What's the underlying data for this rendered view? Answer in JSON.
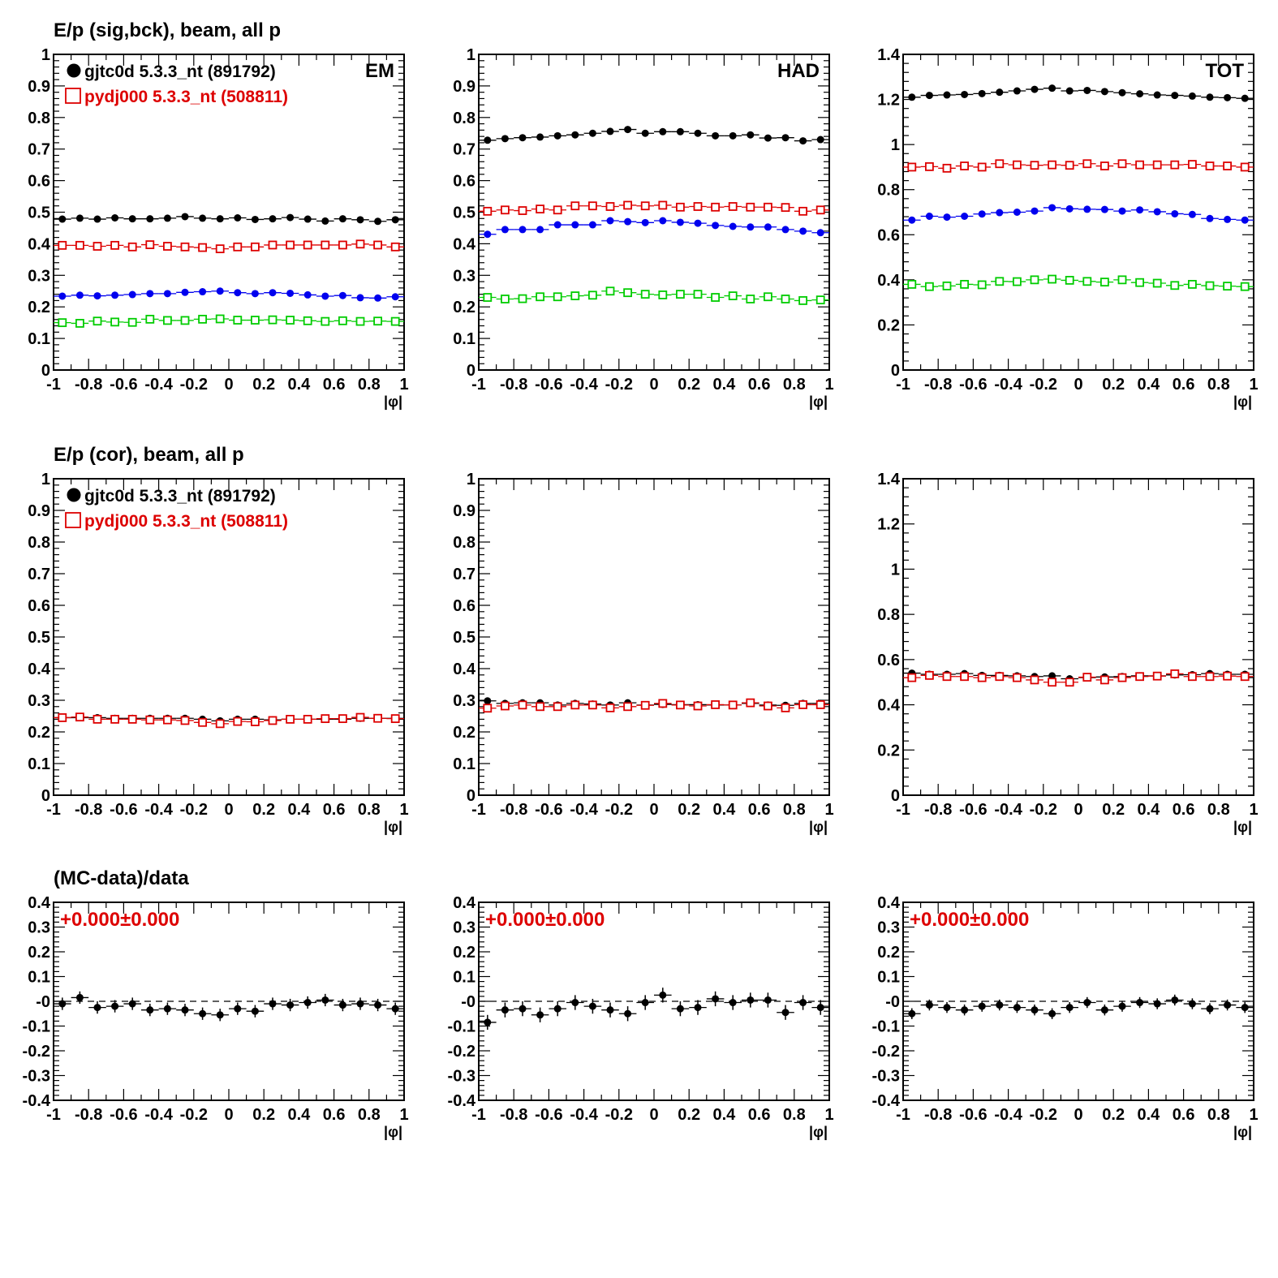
{
  "colors": {
    "black": "#000000",
    "red": "#dd0000",
    "blue": "#0000ee",
    "green": "#00cc00"
  },
  "legend": [
    {
      "label": "gjtc0d 5.3.3_nt (891792)",
      "marker": "filled-circle",
      "color": "#000000"
    },
    {
      "label": "pydj000 5.3.3_nt (508811)",
      "marker": "open-square",
      "color": "#dd0000"
    }
  ],
  "row_titles": [
    "E/p (sig,bck), beam, all p",
    "E/p (cor), beam, all p",
    "(MC-data)/data"
  ],
  "chart_data": [
    {
      "type": "scatter",
      "row": 0,
      "col": 0,
      "tag": "EM",
      "xlabel": "|φ|",
      "xlim": [
        -1,
        1
      ],
      "ylim": [
        0,
        1
      ],
      "xticks": [
        -1,
        -0.8,
        -0.6,
        -0.4,
        -0.2,
        0,
        0.2,
        0.4,
        0.6,
        0.8,
        1
      ],
      "yticks": [
        0,
        0.1,
        0.2,
        0.3,
        0.4,
        0.5,
        0.6,
        0.7,
        0.8,
        0.9,
        1
      ],
      "show_legend": true,
      "series": [
        {
          "marker": "filled-circle",
          "color": "#000000",
          "values": [
            0.478,
            0.481,
            0.478,
            0.482,
            0.479,
            0.479,
            0.481,
            0.486,
            0.481,
            0.479,
            0.482,
            0.477,
            0.479,
            0.483,
            0.478,
            0.472,
            0.479,
            0.476,
            0.471,
            0.476
          ]
        },
        {
          "marker": "open-square",
          "color": "#dd0000",
          "values": [
            0.395,
            0.395,
            0.392,
            0.395,
            0.39,
            0.397,
            0.392,
            0.39,
            0.388,
            0.384,
            0.39,
            0.39,
            0.396,
            0.396,
            0.396,
            0.396,
            0.396,
            0.399,
            0.396,
            0.39
          ]
        },
        {
          "marker": "filled-circle",
          "color": "#0000ee",
          "values": [
            0.234,
            0.237,
            0.235,
            0.237,
            0.239,
            0.242,
            0.242,
            0.246,
            0.248,
            0.25,
            0.245,
            0.242,
            0.245,
            0.243,
            0.238,
            0.234,
            0.236,
            0.229,
            0.228,
            0.232
          ]
        },
        {
          "marker": "open-square",
          "color": "#00cc00",
          "values": [
            0.15,
            0.148,
            0.155,
            0.152,
            0.151,
            0.161,
            0.157,
            0.157,
            0.161,
            0.162,
            0.158,
            0.158,
            0.159,
            0.158,
            0.156,
            0.154,
            0.156,
            0.154,
            0.155,
            0.154
          ]
        }
      ]
    },
    {
      "type": "scatter",
      "row": 0,
      "col": 1,
      "tag": "HAD",
      "xlabel": "|φ|",
      "xlim": [
        -1,
        1
      ],
      "ylim": [
        0,
        1
      ],
      "xticks": [
        -1,
        -0.8,
        -0.6,
        -0.4,
        -0.2,
        0,
        0.2,
        0.4,
        0.6,
        0.8,
        1
      ],
      "yticks": [
        0,
        0.1,
        0.2,
        0.3,
        0.4,
        0.5,
        0.6,
        0.7,
        0.8,
        0.9,
        1
      ],
      "series": [
        {
          "marker": "filled-circle",
          "color": "#000000",
          "values": [
            0.728,
            0.733,
            0.736,
            0.738,
            0.742,
            0.745,
            0.75,
            0.756,
            0.762,
            0.75,
            0.755,
            0.755,
            0.75,
            0.742,
            0.742,
            0.745,
            0.735,
            0.736,
            0.726,
            0.73
          ]
        },
        {
          "marker": "open-square",
          "color": "#dd0000",
          "values": [
            0.503,
            0.507,
            0.505,
            0.51,
            0.507,
            0.52,
            0.52,
            0.518,
            0.522,
            0.52,
            0.522,
            0.516,
            0.518,
            0.516,
            0.518,
            0.516,
            0.516,
            0.515,
            0.503,
            0.507
          ]
        },
        {
          "marker": "filled-circle",
          "color": "#0000ee",
          "values": [
            0.43,
            0.445,
            0.445,
            0.445,
            0.46,
            0.46,
            0.46,
            0.473,
            0.47,
            0.467,
            0.473,
            0.468,
            0.465,
            0.458,
            0.455,
            0.453,
            0.453,
            0.445,
            0.44,
            0.435
          ]
        },
        {
          "marker": "open-square",
          "color": "#00cc00",
          "values": [
            0.23,
            0.225,
            0.226,
            0.232,
            0.232,
            0.235,
            0.237,
            0.25,
            0.245,
            0.24,
            0.238,
            0.24,
            0.24,
            0.23,
            0.235,
            0.225,
            0.232,
            0.225,
            0.22,
            0.222
          ]
        }
      ]
    },
    {
      "type": "scatter",
      "row": 0,
      "col": 2,
      "tag": "TOT",
      "xlabel": "|φ|",
      "xlim": [
        -1,
        1
      ],
      "ylim": [
        0,
        1.4
      ],
      "xticks": [
        -1,
        -0.8,
        -0.6,
        -0.4,
        -0.2,
        0,
        0.2,
        0.4,
        0.6,
        0.8,
        1
      ],
      "yticks": [
        0,
        0.2,
        0.4,
        0.6,
        0.8,
        1,
        1.2,
        1.4
      ],
      "series": [
        {
          "marker": "filled-circle",
          "color": "#000000",
          "values": [
            1.21,
            1.218,
            1.22,
            1.222,
            1.226,
            1.232,
            1.238,
            1.245,
            1.25,
            1.238,
            1.24,
            1.235,
            1.23,
            1.225,
            1.22,
            1.218,
            1.215,
            1.21,
            1.208,
            1.205
          ]
        },
        {
          "marker": "open-square",
          "color": "#dd0000",
          "values": [
            0.9,
            0.902,
            0.895,
            0.905,
            0.9,
            0.915,
            0.91,
            0.908,
            0.91,
            0.908,
            0.915,
            0.905,
            0.915,
            0.91,
            0.91,
            0.91,
            0.912,
            0.905,
            0.905,
            0.9
          ]
        },
        {
          "marker": "filled-circle",
          "color": "#0000ee",
          "values": [
            0.665,
            0.682,
            0.678,
            0.682,
            0.692,
            0.698,
            0.7,
            0.705,
            0.72,
            0.715,
            0.713,
            0.712,
            0.705,
            0.71,
            0.702,
            0.693,
            0.69,
            0.672,
            0.668,
            0.665
          ]
        },
        {
          "marker": "open-square",
          "color": "#00cc00",
          "values": [
            0.38,
            0.37,
            0.373,
            0.38,
            0.378,
            0.393,
            0.392,
            0.4,
            0.403,
            0.398,
            0.393,
            0.39,
            0.4,
            0.388,
            0.385,
            0.375,
            0.38,
            0.374,
            0.372,
            0.37
          ]
        }
      ]
    },
    {
      "type": "scatter",
      "row": 1,
      "col": 0,
      "xlabel": "|φ|",
      "xlim": [
        -1,
        1
      ],
      "ylim": [
        0,
        1
      ],
      "xticks": [
        -1,
        -0.8,
        -0.6,
        -0.4,
        -0.2,
        0,
        0.2,
        0.4,
        0.6,
        0.8,
        1
      ],
      "yticks": [
        0,
        0.1,
        0.2,
        0.3,
        0.4,
        0.5,
        0.6,
        0.7,
        0.8,
        0.9,
        1
      ],
      "show_legend": true,
      "series": [
        {
          "marker": "filled-circle",
          "color": "#000000",
          "values": [
            0.245,
            0.245,
            0.245,
            0.243,
            0.243,
            0.243,
            0.243,
            0.243,
            0.24,
            0.235,
            0.24,
            0.24,
            0.238,
            0.24,
            0.24,
            0.24,
            0.24,
            0.243,
            0.243,
            0.243
          ]
        },
        {
          "marker": "open-square",
          "color": "#dd0000",
          "values": [
            0.245,
            0.247,
            0.24,
            0.24,
            0.24,
            0.238,
            0.238,
            0.236,
            0.23,
            0.226,
            0.233,
            0.232,
            0.236,
            0.24,
            0.24,
            0.242,
            0.242,
            0.246,
            0.243,
            0.242
          ]
        }
      ]
    },
    {
      "type": "scatter",
      "row": 1,
      "col": 1,
      "xlabel": "|φ|",
      "xlim": [
        -1,
        1
      ],
      "ylim": [
        0,
        1
      ],
      "xticks": [
        -1,
        -0.8,
        -0.6,
        -0.4,
        -0.2,
        0,
        0.2,
        0.4,
        0.6,
        0.8,
        1
      ],
      "yticks": [
        0,
        0.1,
        0.2,
        0.3,
        0.4,
        0.5,
        0.6,
        0.7,
        0.8,
        0.9,
        1
      ],
      "series": [
        {
          "marker": "filled-circle",
          "color": "#000000",
          "values": [
            0.298,
            0.29,
            0.292,
            0.292,
            0.285,
            0.29,
            0.288,
            0.285,
            0.292,
            0.285,
            0.287,
            0.286,
            0.286,
            0.285,
            0.285,
            0.29,
            0.285,
            0.284,
            0.29,
            0.29
          ]
        },
        {
          "marker": "open-square",
          "color": "#dd0000",
          "values": [
            0.275,
            0.282,
            0.285,
            0.28,
            0.28,
            0.285,
            0.285,
            0.276,
            0.28,
            0.284,
            0.29,
            0.285,
            0.282,
            0.286,
            0.285,
            0.292,
            0.282,
            0.276,
            0.286,
            0.286
          ]
        }
      ]
    },
    {
      "type": "scatter",
      "row": 1,
      "col": 2,
      "xlabel": "|φ|",
      "xlim": [
        -1,
        1
      ],
      "ylim": [
        0,
        1.4
      ],
      "xticks": [
        -1,
        -0.8,
        -0.6,
        -0.4,
        -0.2,
        0,
        0.2,
        0.4,
        0.6,
        0.8,
        1
      ],
      "yticks": [
        0,
        0.2,
        0.4,
        0.6,
        0.8,
        1,
        1.2,
        1.4
      ],
      "series": [
        {
          "marker": "filled-circle",
          "color": "#000000",
          "values": [
            0.54,
            0.535,
            0.535,
            0.538,
            0.53,
            0.53,
            0.528,
            0.525,
            0.528,
            0.515,
            0.52,
            0.523,
            0.525,
            0.528,
            0.528,
            0.532,
            0.533,
            0.538,
            0.535,
            0.535
          ]
        },
        {
          "marker": "open-square",
          "color": "#dd0000",
          "values": [
            0.52,
            0.53,
            0.525,
            0.525,
            0.52,
            0.525,
            0.52,
            0.51,
            0.5,
            0.5,
            0.522,
            0.51,
            0.52,
            0.525,
            0.527,
            0.537,
            0.525,
            0.525,
            0.527,
            0.525
          ]
        }
      ]
    },
    {
      "type": "scatter",
      "row": 2,
      "col": 0,
      "annotation": "+0.000±0.000",
      "xlabel": "|φ|",
      "xlim": [
        -1,
        1
      ],
      "ylim": [
        -0.4,
        0.4
      ],
      "xticks": [
        -1,
        -0.8,
        -0.6,
        -0.4,
        -0.2,
        0,
        0.2,
        0.4,
        0.6,
        0.8,
        1
      ],
      "yticks": [
        -0.4,
        -0.3,
        -0.2,
        -0.1,
        0,
        0.1,
        0.2,
        0.3,
        0.4
      ],
      "ytick_labels": [
        "-0.4",
        "-0.3",
        "-0.2",
        "-0.1",
        "-0",
        "0.1",
        "0.2",
        "0.3",
        "0.4"
      ],
      "reference_line": 0,
      "series": [
        {
          "marker": "filled-circle",
          "color": "#000000",
          "values": [
            -0.01,
            0.015,
            -0.025,
            -0.02,
            -0.01,
            -0.035,
            -0.03,
            -0.035,
            -0.05,
            -0.055,
            -0.03,
            -0.04,
            -0.01,
            -0.015,
            -0.005,
            0.005,
            -0.015,
            -0.01,
            -0.015,
            -0.03
          ],
          "yerr": 0.025
        }
      ]
    },
    {
      "type": "scatter",
      "row": 2,
      "col": 1,
      "annotation": "+0.000±0.000",
      "xlabel": "|φ|",
      "xlim": [
        -1,
        1
      ],
      "ylim": [
        -0.4,
        0.4
      ],
      "xticks": [
        -1,
        -0.8,
        -0.6,
        -0.4,
        -0.2,
        0,
        0.2,
        0.4,
        0.6,
        0.8,
        1
      ],
      "yticks": [
        -0.4,
        -0.3,
        -0.2,
        -0.1,
        0,
        0.1,
        0.2,
        0.3,
        0.4
      ],
      "ytick_labels": [
        "-0.4",
        "-0.3",
        "-0.2",
        "-0.1",
        "-0",
        "0.1",
        "0.2",
        "0.3",
        "0.4"
      ],
      "reference_line": 0,
      "series": [
        {
          "marker": "filled-circle",
          "color": "#000000",
          "values": [
            -0.085,
            -0.035,
            -0.03,
            -0.055,
            -0.03,
            -0.005,
            -0.02,
            -0.035,
            -0.05,
            -0.005,
            0.025,
            -0.03,
            -0.025,
            0.01,
            -0.005,
            0.005,
            0.005,
            -0.045,
            -0.005,
            -0.025
          ],
          "yerr": 0.03
        }
      ]
    },
    {
      "type": "scatter",
      "row": 2,
      "col": 2,
      "annotation": "+0.000±0.000",
      "xlabel": "|φ|",
      "xlim": [
        -1,
        1
      ],
      "ylim": [
        -0.4,
        0.4
      ],
      "xticks": [
        -1,
        -0.8,
        -0.6,
        -0.4,
        -0.2,
        0,
        0.2,
        0.4,
        0.6,
        0.8,
        1
      ],
      "yticks": [
        -0.4,
        -0.3,
        -0.2,
        -0.1,
        0,
        0.1,
        0.2,
        0.3,
        0.4
      ],
      "ytick_labels": [
        "-0.4",
        "-0.3",
        "-0.2",
        "-0.1",
        "-0",
        "0.1",
        "0.2",
        "0.3",
        "0.4"
      ],
      "reference_line": 0,
      "series": [
        {
          "marker": "filled-circle",
          "color": "#000000",
          "values": [
            -0.05,
            -0.015,
            -0.025,
            -0.035,
            -0.02,
            -0.015,
            -0.025,
            -0.035,
            -0.05,
            -0.025,
            -0.005,
            -0.035,
            -0.02,
            -0.005,
            -0.01,
            0.005,
            -0.01,
            -0.03,
            -0.015,
            -0.025
          ],
          "yerr": 0.022
        }
      ]
    }
  ]
}
